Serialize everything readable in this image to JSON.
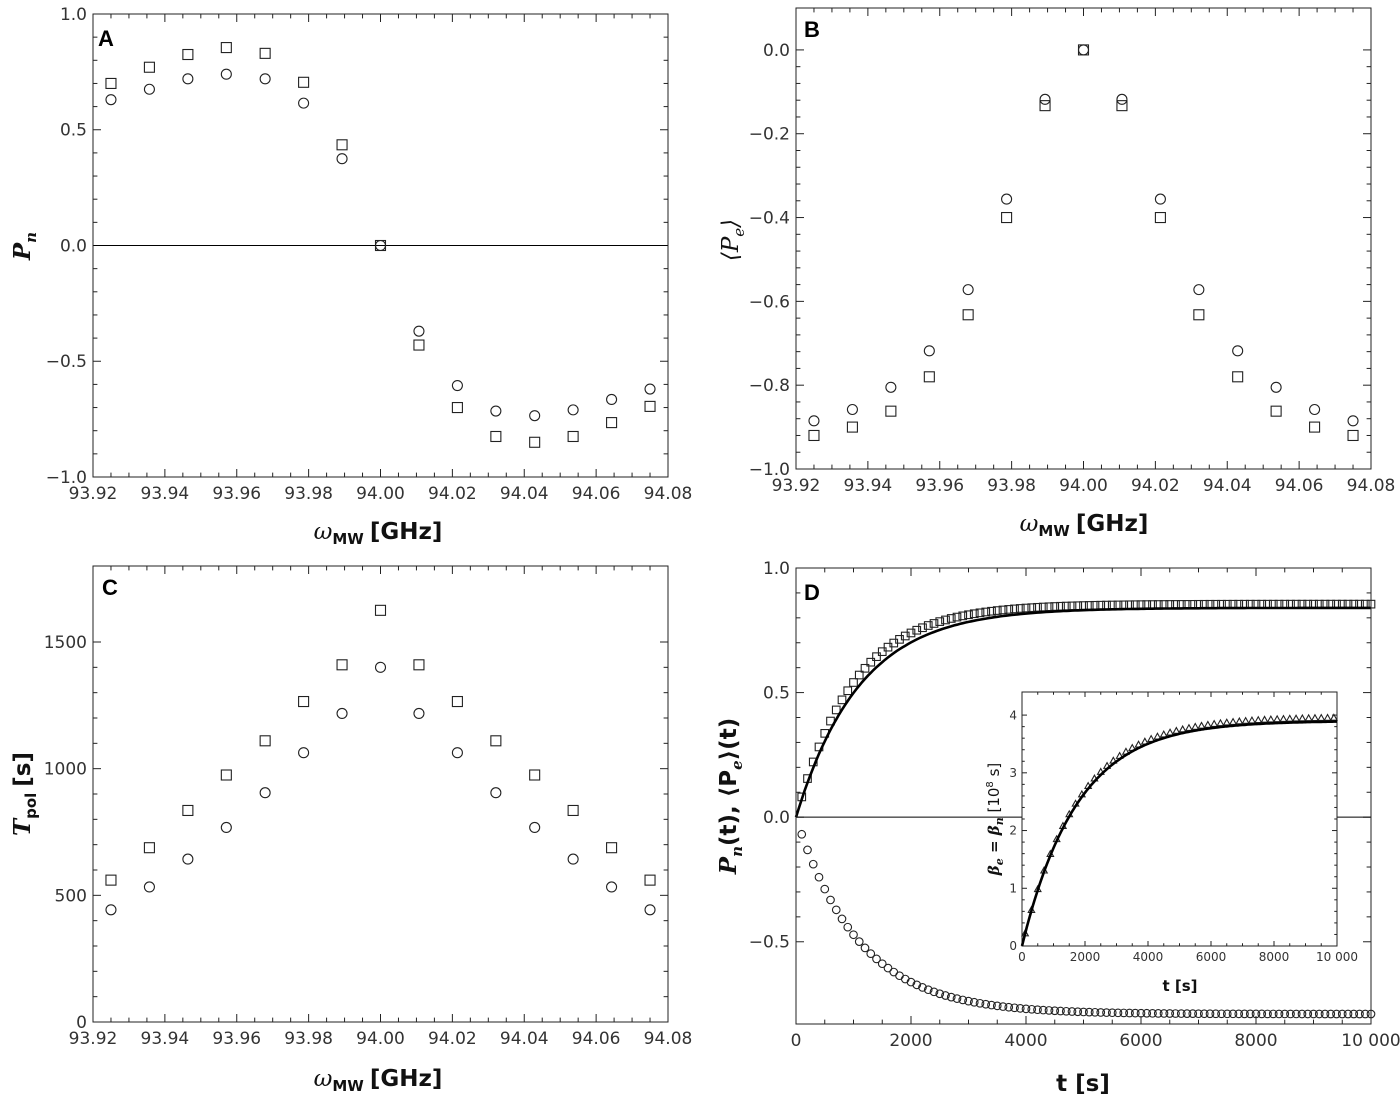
{
  "chart_data": [
    {
      "id": "A",
      "panel_label": "A",
      "type": "scatter",
      "ylabel_text": "P",
      "ylabel_sub": "n",
      "xlabel_text": "ω",
      "xlabel_sub": "MW",
      "xlabel_unit": "[GHz]",
      "xlim": [
        93.92,
        94.08
      ],
      "ylim": [
        -1.0,
        1.0
      ],
      "xticks": [
        93.92,
        93.94,
        93.96,
        93.98,
        94.0,
        94.02,
        94.04,
        94.06,
        94.08
      ],
      "xtick_labels": [
        "93.92",
        "93.94",
        "93.96",
        "93.98",
        "94.00",
        "94.02",
        "94.04",
        "94.06",
        "94.08"
      ],
      "yticks": [
        -1.0,
        -0.5,
        0.0,
        0.5,
        1.0
      ],
      "ytick_labels": [
        "−1.0",
        "−0.5",
        "0.0",
        "0.5",
        "1.0"
      ],
      "hline": 0,
      "x": [
        93.925,
        93.9357,
        93.9464,
        93.9571,
        93.9679,
        93.9786,
        93.9893,
        94.0,
        94.0107,
        94.0214,
        94.0321,
        94.0429,
        94.0536,
        94.0643,
        94.075
      ],
      "series": [
        {
          "name": "squares",
          "marker": "square",
          "values": [
            0.7,
            0.77,
            0.825,
            0.855,
            0.83,
            0.705,
            0.435,
            0.0,
            -0.43,
            -0.7,
            -0.825,
            -0.85,
            -0.825,
            -0.765,
            -0.695
          ]
        },
        {
          "name": "circles",
          "marker": "circle",
          "values": [
            0.63,
            0.675,
            0.72,
            0.74,
            0.72,
            0.615,
            0.375,
            0.0,
            -0.37,
            -0.605,
            -0.715,
            -0.735,
            -0.71,
            -0.665,
            -0.62
          ]
        }
      ]
    },
    {
      "id": "B",
      "panel_label": "B",
      "type": "scatter",
      "ylabel_text": "⟨P",
      "ylabel_sub": "e",
      "ylabel_close": "⟩",
      "xlabel_text": "ω",
      "xlabel_sub": "MW",
      "xlabel_unit": "[GHz]",
      "xlim": [
        93.92,
        94.08
      ],
      "ylim": [
        -1.0,
        0.1
      ],
      "xticks": [
        93.92,
        93.94,
        93.96,
        93.98,
        94.0,
        94.02,
        94.04,
        94.06,
        94.08
      ],
      "xtick_labels": [
        "93.92",
        "93.94",
        "93.96",
        "93.98",
        "94.00",
        "94.02",
        "94.04",
        "94.06",
        "94.08"
      ],
      "yticks": [
        -1.0,
        -0.8,
        -0.6,
        -0.4,
        -0.2,
        0.0
      ],
      "ytick_labels": [
        "−1.0",
        "−0.8",
        "−0.6",
        "−0.4",
        "−0.2",
        "0.0"
      ],
      "x": [
        93.925,
        93.9357,
        93.9464,
        93.9571,
        93.9679,
        93.9786,
        93.9893,
        94.0,
        94.0107,
        94.0214,
        94.0321,
        94.0429,
        94.0536,
        94.0643,
        94.075
      ],
      "series": [
        {
          "name": "squares",
          "marker": "square",
          "values": [
            -0.92,
            -0.9,
            -0.862,
            -0.78,
            -0.632,
            -0.4,
            -0.133,
            0.0,
            -0.133,
            -0.4,
            -0.632,
            -0.78,
            -0.862,
            -0.9,
            -0.92
          ]
        },
        {
          "name": "circles",
          "marker": "circle",
          "values": [
            -0.885,
            -0.858,
            -0.805,
            -0.718,
            -0.572,
            -0.356,
            -0.118,
            0.0,
            -0.118,
            -0.356,
            -0.572,
            -0.718,
            -0.805,
            -0.858,
            -0.885
          ]
        }
      ]
    },
    {
      "id": "C",
      "panel_label": "C",
      "type": "scatter",
      "ylabel_text": "T",
      "ylabel_sub": "pol",
      "ylabel_unit": "[s]",
      "xlabel_text": "ω",
      "xlabel_sub": "MW",
      "xlabel_unit": "[GHz]",
      "xlim": [
        93.92,
        94.08
      ],
      "ylim": [
        0,
        1800
      ],
      "xticks": [
        93.92,
        93.94,
        93.96,
        93.98,
        94.0,
        94.02,
        94.04,
        94.06,
        94.08
      ],
      "xtick_labels": [
        "93.92",
        "93.94",
        "93.96",
        "93.98",
        "94.00",
        "94.02",
        "94.04",
        "94.06",
        "94.08"
      ],
      "yticks": [
        0,
        500,
        1000,
        1500
      ],
      "ytick_labels": [
        "0",
        "500",
        "1000",
        "1500"
      ],
      "x": [
        93.925,
        93.9357,
        93.9464,
        93.9571,
        93.9679,
        93.9786,
        93.9893,
        94.0,
        94.0107,
        94.0214,
        94.0321,
        94.0429,
        94.0536,
        94.0643,
        94.075
      ],
      "series": [
        {
          "name": "squares",
          "marker": "square",
          "values": [
            560,
            688,
            835,
            975,
            1110,
            1265,
            1410,
            1625,
            1410,
            1265,
            1110,
            975,
            835,
            688,
            560
          ]
        },
        {
          "name": "circles",
          "marker": "circle",
          "values": [
            443,
            533,
            643,
            768,
            905,
            1063,
            1218,
            1400,
            1218,
            1063,
            905,
            768,
            643,
            533,
            443
          ]
        }
      ]
    },
    {
      "id": "D",
      "panel_label": "D",
      "type": "scatter",
      "ylabel_parts": [
        "P",
        "n",
        "(t), ⟨P",
        "e",
        "⟩(t)"
      ],
      "xlabel_text": "t [s]",
      "xlim": [
        0,
        10000
      ],
      "ylim": [
        -0.83,
        1.0
      ],
      "xticks": [
        0,
        2000,
        4000,
        6000,
        8000,
        10000
      ],
      "xtick_labels": [
        "0",
        "2000",
        "4000",
        "6000",
        "8000",
        "10 000"
      ],
      "yticks": [
        -0.5,
        0.0,
        0.5,
        1.0
      ],
      "ytick_labels": [
        "−0.5",
        "0.0",
        "0.5",
        "1.0"
      ],
      "hline": 0,
      "series_models": [
        {
          "name": "squares P_n(t)",
          "marker": "square",
          "form": "A*(1-exp(-t/tau))",
          "A": 0.855,
          "tau": 1000,
          "t_start": 100,
          "t_step": 100,
          "t_end": 10000
        },
        {
          "name": "circles <P_e>(t)",
          "marker": "circle",
          "form": "A*(1-exp(-t/tau))",
          "A": -0.79,
          "tau": 1100,
          "t_start": 100,
          "t_step": 100,
          "t_end": 10000
        },
        {
          "name": "fit",
          "line": true,
          "form": "A*(1-exp(-t/tau))",
          "A": 0.84,
          "tau": 1110
        }
      ],
      "inset": {
        "type": "scatter",
        "xlabel": "t [s]",
        "ylabel_parts": [
          "β",
          "e",
          " = β",
          "n",
          " [10",
          "8",
          " s]"
        ],
        "xlim": [
          0,
          10000
        ],
        "ylim": [
          0,
          4.4
        ],
        "xticks": [
          0,
          2000,
          4000,
          6000,
          8000,
          10000
        ],
        "xtick_labels": [
          "0",
          "2000",
          "4000",
          "6000",
          "8000",
          "10 000"
        ],
        "yticks": [
          0,
          1,
          2,
          3,
          4
        ],
        "ytick_labels": [
          "0",
          "1",
          "2",
          "3",
          "4"
        ],
        "series_models": [
          {
            "name": "triangles",
            "marker": "triangle",
            "form": "A*(1-exp(-t/tau))",
            "A": 3.97,
            "tau": 1750,
            "t_start": 100,
            "t_step": 200,
            "t_end": 10000
          },
          {
            "name": "fit",
            "line": true,
            "form": "A*(1-exp(-t/tau))",
            "A": 3.9,
            "tau": 1750
          }
        ]
      }
    }
  ]
}
